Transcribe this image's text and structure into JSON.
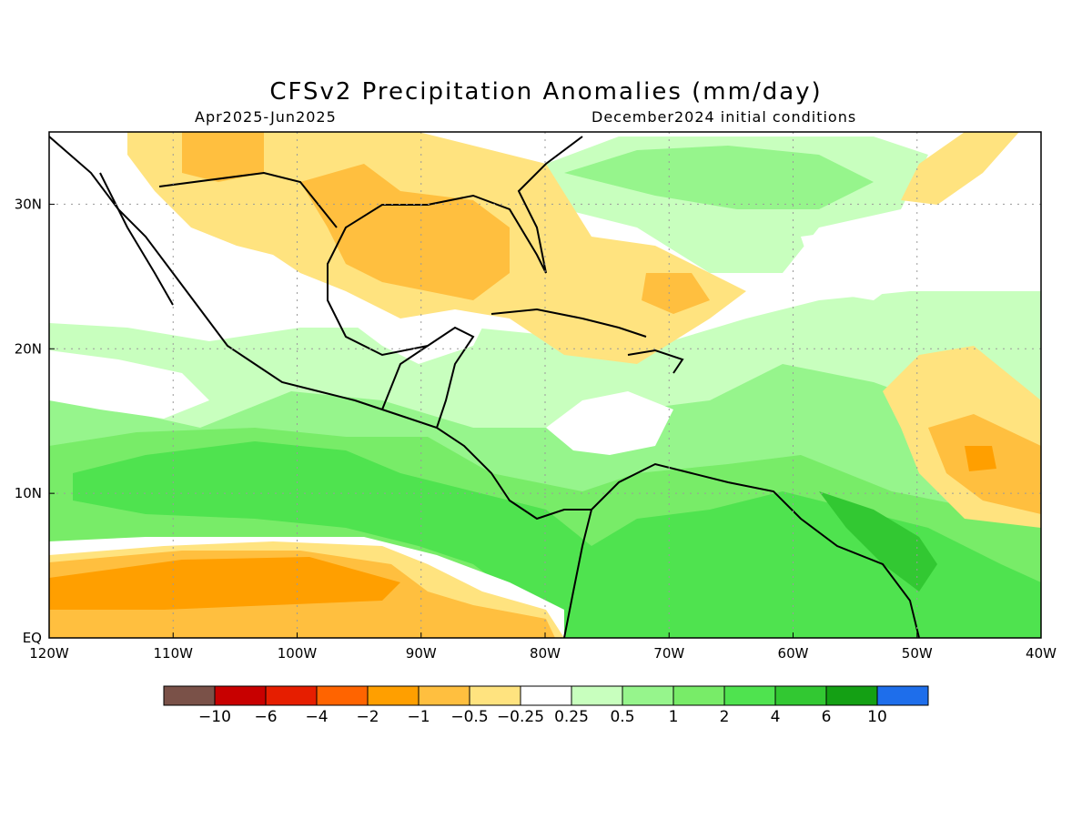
{
  "title": "CFSv2 Precipitation Anomalies (mm/day)",
  "period": "Apr2025-Jun2025",
  "init": "December2024 initial conditions",
  "map": {
    "lon_range": [
      -120,
      -40
    ],
    "lat_range": [
      0,
      35
    ],
    "lon_ticks": [
      {
        "value": -120,
        "label": "120W"
      },
      {
        "value": -110,
        "label": "110W"
      },
      {
        "value": -100,
        "label": "100W"
      },
      {
        "value": -90,
        "label": "90W"
      },
      {
        "value": -80,
        "label": "80W"
      },
      {
        "value": -70,
        "label": "70W"
      },
      {
        "value": -60,
        "label": "60W"
      },
      {
        "value": -50,
        "label": "50W"
      },
      {
        "value": -40,
        "label": "40W"
      }
    ],
    "lat_ticks": [
      {
        "value": 0,
        "label": "EQ"
      },
      {
        "value": 10,
        "label": "10N"
      },
      {
        "value": 20,
        "label": "20N"
      },
      {
        "value": 30,
        "label": "30N"
      }
    ],
    "grid": true
  },
  "colorbar": {
    "colors": [
      "#7a5148",
      "#c80000",
      "#e61e00",
      "#ff6400",
      "#ff9f00",
      "#ffbf3f",
      "#ffe37f",
      "#ffffff",
      "#c8ffbe",
      "#96f58c",
      "#78ec68",
      "#4fe34f",
      "#32c832",
      "#14a014",
      "#1e6eeb"
    ],
    "labels": [
      "-10",
      "-6",
      "-4",
      "-2",
      "-1",
      "-0.5",
      "-0.25",
      "0.25",
      "0.5",
      "1",
      "2",
      "4",
      "6",
      "10"
    ]
  }
}
